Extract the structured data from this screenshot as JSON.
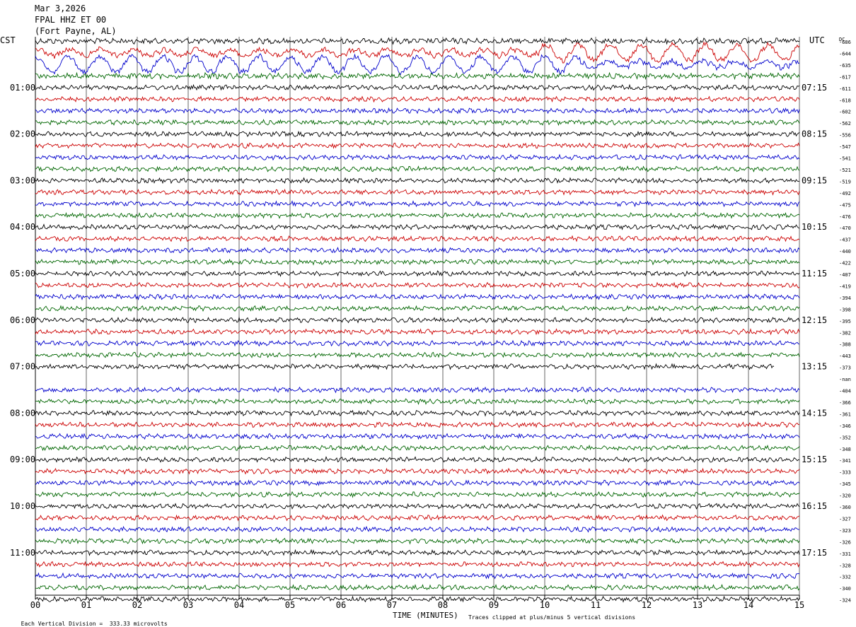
{
  "header": {
    "date": "Mar 3,2026",
    "station": "FPAL HHZ ET 00",
    "location": "(Fort Payne, AL)"
  },
  "left_tz": "CST",
  "right_tz": "UTC",
  "dc_label": "DC",
  "footer": {
    "left": "Each Vertical Division =  333.33 microvolts",
    "xlabel": "TIME (MINUTES)",
    "right": "Traces clipped at plus/minus 5 vertical divisions"
  },
  "chart_data": {
    "type": "line",
    "title": "",
    "xlabel": "TIME (MINUTES)",
    "ylabel": "",
    "x_ticks": [
      "00",
      "01",
      "02",
      "03",
      "04",
      "05",
      "06",
      "07",
      "08",
      "09",
      "10",
      "11",
      "12",
      "13",
      "14",
      "15"
    ],
    "xlim": [
      0,
      15
    ],
    "trace_colors": [
      "#000000",
      "#cc0000",
      "#0000cc",
      "#006600"
    ],
    "cst_hour_labels": [
      "01:00",
      "02:00",
      "03:00",
      "04:00",
      "05:00",
      "06:00",
      "07:00",
      "08:00",
      "09:00",
      "10:00",
      "11:00"
    ],
    "utc_hour_labels": [
      "07:15",
      "08:15",
      "09:15",
      "10:15",
      "11:15",
      "12:15",
      "13:15",
      "14:15",
      "15:15",
      "16:15",
      "17:15"
    ],
    "dc_offsets": [
      "-686",
      "-644",
      "-635",
      "-617",
      "-611",
      "-618",
      "-602",
      "-562",
      "-556",
      "-547",
      "-541",
      "-521",
      "-519",
      "-492",
      "-475",
      "-476",
      "-470",
      "-437",
      "-440",
      "-422",
      "-407",
      "-419",
      "-394",
      "-398",
      "-395",
      "-382",
      "-388",
      "-443",
      "-373",
      "-nan",
      "-404",
      "-366",
      "-361",
      "-346",
      "-352",
      "-348",
      "-341",
      "-333",
      "-345",
      "-320",
      "-360",
      "-327",
      "-323",
      "-326",
      "-331",
      "-328",
      "-332",
      "-340",
      "-324"
    ],
    "missing_trace_index": 29,
    "partial_trace_index": 28,
    "partial_trace_end_minute": 14.5,
    "large_oscillation_traces": [
      1,
      2
    ]
  }
}
